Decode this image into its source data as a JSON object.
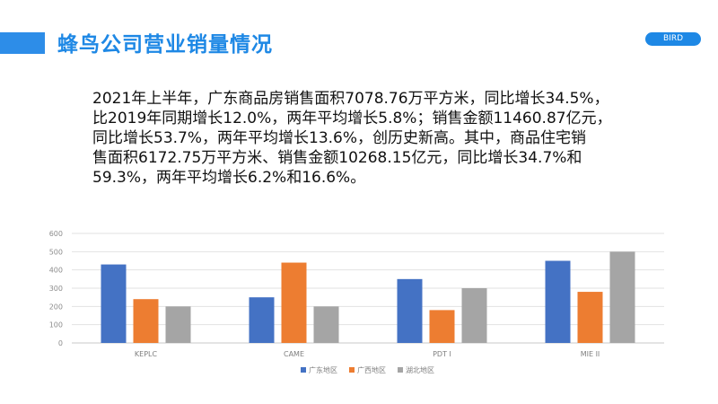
{
  "header": {
    "title": "蜂鸟公司营业销量情况",
    "brand": "BIRD"
  },
  "body": {
    "lines": [
      "2021年上半年，广东商品房销售面积7078.76万平方米，同比增长34.5%，",
      "比2019年同期增长12.0%，两年平均增长5.8%；销售金额11460.87亿元，",
      "同比增长53.7%，两年平均增长13.6%，创历史新高。其中，商品住宅销",
      "售面积6172.75万平方米、销售金额10268.15亿元，同比增长34.7%和",
      "59.3%，两年平均增长6.2%和16.6%。"
    ]
  },
  "colors": {
    "accent": "#1e88e5",
    "series": [
      "#4472c4",
      "#ed7d31",
      "#a5a5a5"
    ]
  },
  "chart_data": {
    "type": "bar",
    "categories": [
      "KEPLC",
      "CAME",
      "PDT I",
      "MIE II"
    ],
    "series": [
      {
        "name": "广东地区",
        "values": [
          430,
          250,
          350,
          450
        ]
      },
      {
        "name": "广西地区",
        "values": [
          240,
          440,
          180,
          280
        ]
      },
      {
        "name": "湖北地区",
        "values": [
          200,
          200,
          300,
          500
        ]
      }
    ],
    "ylim": [
      0,
      600
    ],
    "yticks": [
      0,
      100,
      200,
      300,
      400,
      500,
      600
    ],
    "grid": true,
    "legend": "bottom"
  }
}
